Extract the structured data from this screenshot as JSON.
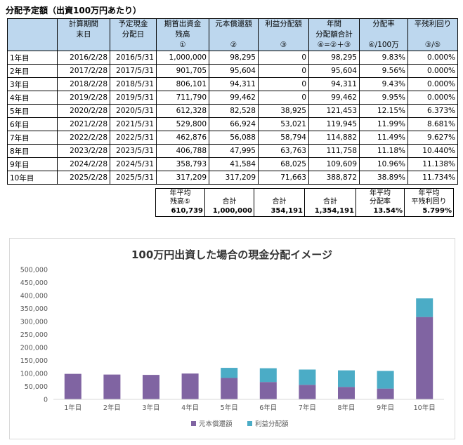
{
  "caption": "分配予定額（出資100万円あたり）",
  "headers": [
    [
      "",
      "計算期間",
      "予定現金",
      "期首出資金",
      "元本償還額",
      "利益分配額",
      "年間",
      "分配率",
      "平残利回り"
    ],
    [
      "",
      "末日",
      "分配日",
      "残高",
      "",
      "",
      "分配額合計",
      "",
      ""
    ],
    [
      "",
      "",
      "",
      "①",
      "②",
      "③",
      "④=②＋③",
      "④/100万",
      "③/⑤"
    ]
  ],
  "rows": [
    {
      "label": "1年目",
      "period_end": "2016/2/28",
      "pay_date": "2016/5/31",
      "balance": "1,000,000",
      "principal": "98,295",
      "profit": "0",
      "total": "98,295",
      "rate": "9.83%",
      "yield": "0.000%"
    },
    {
      "label": "2年目",
      "period_end": "2017/2/28",
      "pay_date": "2017/5/31",
      "balance": "901,705",
      "principal": "95,604",
      "profit": "0",
      "total": "95,604",
      "rate": "9.56%",
      "yield": "0.000%"
    },
    {
      "label": "3年目",
      "period_end": "2018/2/28",
      "pay_date": "2018/5/31",
      "balance": "806,101",
      "principal": "94,311",
      "profit": "0",
      "total": "94,311",
      "rate": "9.43%",
      "yield": "0.000%"
    },
    {
      "label": "4年目",
      "period_end": "2019/2/28",
      "pay_date": "2019/5/31",
      "balance": "711,790",
      "principal": "99,462",
      "profit": "0",
      "total": "99,462",
      "rate": "9.95%",
      "yield": "0.000%"
    },
    {
      "label": "5年目",
      "period_end": "2020/2/28",
      "pay_date": "2020/5/31",
      "balance": "612,328",
      "principal": "82,528",
      "profit": "38,925",
      "total": "121,453",
      "rate": "12.15%",
      "yield": "6.373%"
    },
    {
      "label": "6年目",
      "period_end": "2021/2/28",
      "pay_date": "2021/5/31",
      "balance": "529,800",
      "principal": "66,924",
      "profit": "53,021",
      "total": "119,945",
      "rate": "11.99%",
      "yield": "8.681%"
    },
    {
      "label": "7年目",
      "period_end": "2022/2/28",
      "pay_date": "2022/5/31",
      "balance": "462,876",
      "principal": "56,088",
      "profit": "58,794",
      "total": "114,882",
      "rate": "11.49%",
      "yield": "9.627%"
    },
    {
      "label": "8年目",
      "period_end": "2023/2/28",
      "pay_date": "2023/5/31",
      "balance": "406,788",
      "principal": "47,995",
      "profit": "63,763",
      "total": "111,758",
      "rate": "11.18%",
      "yield": "10.440%"
    },
    {
      "label": "9年目",
      "period_end": "2024/2/28",
      "pay_date": "2024/5/31",
      "balance": "358,793",
      "principal": "41,584",
      "profit": "68,025",
      "total": "109,609",
      "rate": "10.96%",
      "yield": "11.138%"
    },
    {
      "label": "10年目",
      "period_end": "2025/2/28",
      "pay_date": "2025/5/31",
      "balance": "317,209",
      "principal": "317,209",
      "profit": "71,663",
      "total": "388,872",
      "rate": "38.89%",
      "yield": "11.734%"
    }
  ],
  "summary": [
    {
      "label1": "年平均",
      "label2": "残高⑤",
      "value": "610,739"
    },
    {
      "label1": "",
      "label2": "合計",
      "value": "1,000,000"
    },
    {
      "label1": "",
      "label2": "合計",
      "value": "354,191"
    },
    {
      "label1": "",
      "label2": "合計",
      "value": "1,354,191"
    },
    {
      "label1": "年平均",
      "label2": "分配率",
      "value": "13.54%"
    },
    {
      "label1": "年平均",
      "label2": "平残利回り",
      "value": "5.799%"
    }
  ],
  "colors": {
    "header_bg": "#bdd7ee",
    "principal": "#8064a2",
    "profit": "#4bacc6"
  },
  "chart_data": {
    "type": "bar",
    "stacked": true,
    "title": "100万円出資した場合の現金分配イメージ",
    "categories": [
      "1年目",
      "2年目",
      "3年目",
      "4年目",
      "5年目",
      "6年目",
      "7年目",
      "8年目",
      "9年目",
      "10年目"
    ],
    "series": [
      {
        "name": "元本償還額",
        "values": [
          98295,
          95604,
          94311,
          99462,
          82528,
          66924,
          56088,
          47995,
          41584,
          317209
        ]
      },
      {
        "name": "利益分配額",
        "values": [
          0,
          0,
          0,
          0,
          38925,
          53021,
          58794,
          63763,
          68025,
          71663
        ]
      }
    ],
    "ylim": [
      0,
      500000
    ],
    "yticks": [
      "0",
      "50,000",
      "100,000",
      "150,000",
      "200,000",
      "250,000",
      "300,000",
      "350,000",
      "400,000",
      "450,000",
      "500,000"
    ],
    "legend": "bottom",
    "grid": false
  }
}
